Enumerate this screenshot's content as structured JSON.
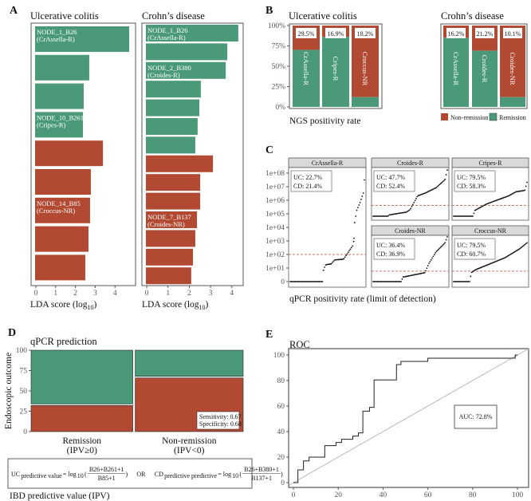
{
  "colors": {
    "remission": "#4a9a7a",
    "non_remission": "#b24a33",
    "lod": "#c9473f",
    "roc_diag": "#b8b8b8"
  },
  "chart_data": [
    {
      "panel": "A",
      "type": "bar",
      "orientation": "horizontal",
      "xlabel": "LDA score (log",
      "xlabel_sub": "10",
      "xlabel_end": ")",
      "xticks": [
        "0",
        "1",
        "2",
        "3",
        "4"
      ],
      "facets": [
        {
          "title": "Ulcerative colitis",
          "bars": [
            {
              "value": 4.76,
              "group": "remission",
              "label": "NODE_1_B26",
              "sublabel": "(CrAssella-R)"
            },
            {
              "value": 2.74,
              "group": "remission"
            },
            {
              "value": 2.46,
              "group": "remission"
            },
            {
              "value": 2.42,
              "group": "remission",
              "label": "NODE_10_B261",
              "sublabel": "(Cripes-R)"
            },
            {
              "value": 3.43,
              "group": "non_remission"
            },
            {
              "value": 2.82,
              "group": "non_remission"
            },
            {
              "value": 2.78,
              "group": "non_remission",
              "label": "NODE_14_B85",
              "sublabel": "(Croccus-NR)"
            },
            {
              "value": 2.7,
              "group": "non_remission"
            },
            {
              "value": 2.54,
              "group": "non_remission"
            }
          ]
        },
        {
          "title": "Crohn’s disease",
          "bars": [
            {
              "value": 4.34,
              "group": "remission",
              "label": "NODE_1_B26",
              "sublabel": "(CrAssella-R)"
            },
            {
              "value": 3.82,
              "group": "remission"
            },
            {
              "value": 3.75,
              "group": "remission",
              "label": "NODE_2_B380",
              "sublabel": "(Croides-R)"
            },
            {
              "value": 2.58,
              "group": "remission"
            },
            {
              "value": 2.51,
              "group": "remission"
            },
            {
              "value": 2.43,
              "group": "remission"
            },
            {
              "value": 2.32,
              "group": "remission"
            },
            {
              "value": 3.15,
              "group": "non_remission"
            },
            {
              "value": 2.55,
              "group": "non_remission"
            },
            {
              "value": 2.55,
              "group": "non_remission"
            },
            {
              "value": 2.4,
              "group": "non_remission",
              "label": "NODE_7_B137",
              "sublabel": "(Croides-NR)"
            },
            {
              "value": 2.32,
              "group": "non_remission"
            },
            {
              "value": 2.21,
              "group": "non_remission"
            },
            {
              "value": 2.13,
              "group": "non_remission"
            }
          ]
        }
      ]
    },
    {
      "panel": "B",
      "type": "bar",
      "stacked": true,
      "xlabel": "NGS positivity rate",
      "yticks": [
        "0%",
        "25%",
        "50%",
        "75%",
        "100%"
      ],
      "ylim": [
        0,
        100
      ],
      "legend": [
        "Non-remission",
        "Remission"
      ],
      "legend_position": "bottom-right",
      "facets": [
        {
          "title": "Ulcerative colitis",
          "bars": [
            {
              "name": "CrAssella-R",
              "remission": 70,
              "non_remission": 30,
              "positivity": "29.5%"
            },
            {
              "name": "Cripes-R",
              "remission": 86,
              "non_remission": 14,
              "positivity": "16.9%"
            },
            {
              "name": "Croccus-NR",
              "remission": 12,
              "non_remission": 88,
              "positivity": "18.2%"
            }
          ]
        },
        {
          "title": "Crohn’s disease",
          "bars": [
            {
              "name": "CrAssella-R",
              "remission": 85,
              "non_remission": 15,
              "positivity": "16.2%"
            },
            {
              "name": "Croides-R",
              "remission": 69,
              "non_remission": 31,
              "positivity": "21.2%"
            },
            {
              "name": "Croides-NR",
              "remission": 12,
              "non_remission": 88,
              "positivity": "10.1%"
            }
          ]
        }
      ]
    },
    {
      "panel": "C",
      "type": "scatter",
      "xlabel": "qPCR positivity rate (limit of detection)",
      "yticks": [
        "0",
        "1e+01",
        "1e+02",
        "1e+03",
        "1e+04",
        "1e+05",
        "1e+06",
        "1e+07",
        "1e+08"
      ],
      "note": "points given as [rank fraction, log10 copies]",
      "facets": [
        {
          "name": "CrAssella-R",
          "uc": "UC: 22.7%",
          "cd": "CD: 21.4%",
          "lod": 2.0,
          "points": [
            [
              0,
              0
            ],
            [
              0.44,
              0
            ],
            [
              0.45,
              0.9
            ],
            [
              0.48,
              1.25
            ],
            [
              0.55,
              1.3
            ],
            [
              0.6,
              1.6
            ],
            [
              0.72,
              1.65
            ],
            [
              0.8,
              2.3
            ],
            [
              0.85,
              2.7
            ],
            [
              0.86,
              3.2
            ],
            [
              0.87,
              4.4
            ],
            [
              0.9,
              5.3
            ],
            [
              0.94,
              5.8
            ],
            [
              0.99,
              6.6
            ],
            [
              1,
              7.5
            ]
          ]
        },
        {
          "name": "Croides-R",
          "uc": "UC: 47.7%",
          "cd": "CD: 52.4%",
          "lod": 5.6,
          "points": [
            [
              0,
              4.8
            ],
            [
              0.2,
              4.8
            ],
            [
              0.22,
              4.9
            ],
            [
              0.45,
              5.1
            ],
            [
              0.5,
              5.3
            ],
            [
              0.55,
              5.8
            ],
            [
              0.6,
              6.3
            ],
            [
              0.7,
              6.5
            ],
            [
              0.85,
              6.9
            ],
            [
              0.97,
              7.5
            ],
            [
              1,
              8.2
            ]
          ]
        },
        {
          "name": "Cripes-R",
          "uc": "UC: 79.5%",
          "cd": "CD: 58.3%",
          "lod": 5.6,
          "points": [
            [
              0,
              4.8
            ],
            [
              0.27,
              4.8
            ],
            [
              0.28,
              5.2
            ],
            [
              0.45,
              5.7
            ],
            [
              0.6,
              6.0
            ],
            [
              0.75,
              6.3
            ],
            [
              0.85,
              6.6
            ],
            [
              0.97,
              6.7
            ],
            [
              1,
              7.3
            ]
          ]
        },
        {
          "name": "Croides-NR",
          "uc": "UC: 36.4%",
          "cd": "CD: 36.9%",
          "lod": 0.7,
          "points": [
            [
              0,
              0
            ],
            [
              0.38,
              0
            ],
            [
              0.4,
              0.3
            ],
            [
              0.7,
              0.6
            ],
            [
              0.75,
              1.2
            ],
            [
              0.85,
              2.0
            ],
            [
              0.97,
              2.6
            ],
            [
              1,
              3.0
            ]
          ]
        },
        {
          "name": "Croccus-NR",
          "uc": "UC: 79.5%",
          "cd": "CD: 60.7%",
          "lod": 0.7,
          "points": [
            [
              0,
              0
            ],
            [
              0.22,
              0
            ],
            [
              0.24,
              0.6
            ],
            [
              0.3,
              0.8
            ],
            [
              0.5,
              1.2
            ],
            [
              0.7,
              1.6
            ],
            [
              0.9,
              2.2
            ],
            [
              1,
              2.6
            ]
          ]
        }
      ]
    },
    {
      "panel": "D",
      "type": "bar",
      "subtype": "mosaic",
      "title": "qPCR prediction",
      "ylabel": "Endoscopic outcome",
      "yticks": [
        "0",
        "25",
        "50",
        "75",
        "100"
      ],
      "ylim": [
        0,
        100
      ],
      "columns": [
        {
          "label": "Remission",
          "sublabel": "(IPV≥0)",
          "share": 0.485,
          "non_remission": 32,
          "remission": 68
        },
        {
          "label": "Non-remission",
          "sublabel": "(IPV<0)",
          "share": 0.515,
          "non_remission": 66,
          "remission": 34
        }
      ],
      "stats": [
        "Sensitivity: 0.67",
        "Specificity: 0.68"
      ],
      "formula": {
        "uc_lhs": "UC",
        "uc_sub": "predictive value",
        "eq": "= log",
        "log_sub": "10",
        "open": "(",
        "uc_num": "B26+B261+1",
        "uc_den": "B85+1",
        "close": ")",
        "or": "OR",
        "cd_lhs": "CD",
        "cd_sub": "predictive predictive",
        "cd_num": "B26+B380+1",
        "cd_den": "B137+1"
      },
      "footer": "IBD predictive value (IPV)"
    },
    {
      "panel": "E",
      "type": "line",
      "title": "ROC",
      "xticks": [
        "0",
        "20",
        "40",
        "60",
        "80",
        "100"
      ],
      "yticks": [
        "0",
        "20",
        "40",
        "60",
        "80",
        "100"
      ],
      "xlim": [
        0,
        100
      ],
      "ylim": [
        0,
        100
      ],
      "auc": "AUC: 72.8%",
      "points": [
        [
          0,
          0
        ],
        [
          2,
          0
        ],
        [
          2,
          10
        ],
        [
          4.5,
          10
        ],
        [
          4.5,
          17
        ],
        [
          7,
          17
        ],
        [
          7,
          20
        ],
        [
          14,
          20
        ],
        [
          14,
          29
        ],
        [
          19,
          29
        ],
        [
          19,
          31.5
        ],
        [
          21.5,
          31.5
        ],
        [
          21.5,
          34
        ],
        [
          26.5,
          34
        ],
        [
          26.5,
          36.5
        ],
        [
          29,
          36.5
        ],
        [
          29,
          39
        ],
        [
          31,
          39
        ],
        [
          31,
          56
        ],
        [
          34,
          56
        ],
        [
          34,
          59
        ],
        [
          36,
          59
        ],
        [
          36,
          80.5
        ],
        [
          46,
          80.5
        ],
        [
          46,
          92.5
        ],
        [
          48,
          92.5
        ],
        [
          48,
          95
        ],
        [
          60,
          95
        ],
        [
          60,
          97.5
        ],
        [
          99,
          97.5
        ],
        [
          99,
          100
        ],
        [
          100,
          100
        ]
      ]
    }
  ]
}
